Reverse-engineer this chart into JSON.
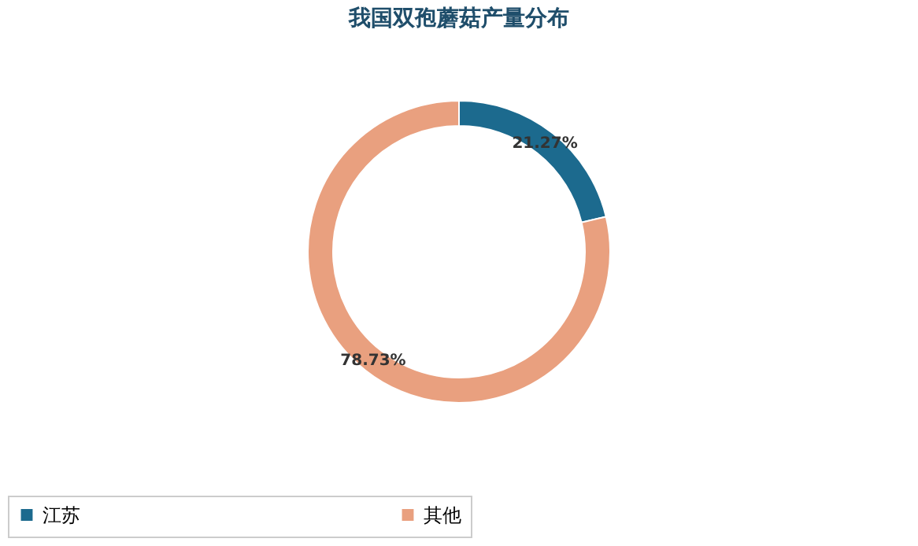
{
  "chart_data": {
    "type": "donut",
    "title": "我国双孢蘑菇产量分布",
    "categories": [
      "江苏",
      "其他"
    ],
    "values": [
      21.27,
      78.73
    ],
    "colors": [
      "#1c6a8e",
      "#e9a07f"
    ],
    "value_labels": [
      "21.27%",
      "78.73%"
    ],
    "legend": "bottom"
  }
}
